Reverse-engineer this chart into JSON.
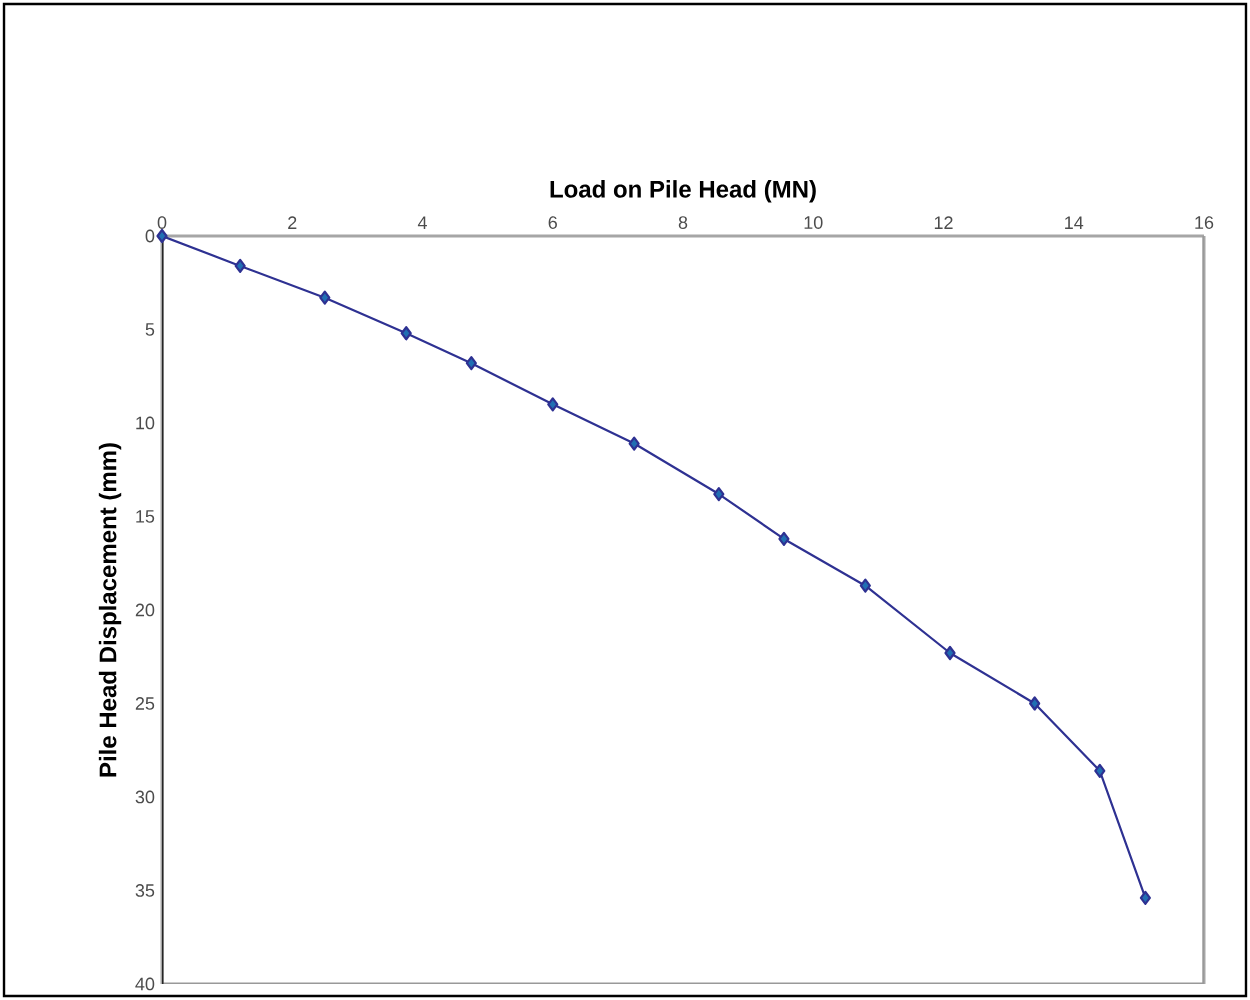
{
  "chart_data": {
    "type": "line",
    "xlabel": "Load on Pile Head (MN)",
    "ylabel": "Pile Head Displacement (mm)",
    "x": [
      0,
      1.2,
      2.5,
      3.75,
      4.75,
      6.0,
      7.25,
      8.55,
      9.55,
      10.8,
      12.1,
      13.4,
      14.4,
      15.1
    ],
    "series": [
      {
        "color": "#2e3192",
        "values": [
          0,
          1.6,
          3.3,
          5.2,
          6.8,
          9.0,
          11.1,
          13.8,
          16.2,
          18.7,
          22.3,
          25.0,
          28.6,
          35.4
        ]
      }
    ],
    "marker": "diamond",
    "line_style": "solid",
    "xlim": [
      0,
      16
    ],
    "xticks": [
      0,
      2,
      4,
      6,
      8,
      10,
      12,
      14,
      16
    ],
    "ylim": [
      40,
      0
    ],
    "yticks": [
      0,
      5,
      10,
      15,
      20,
      25,
      30,
      35,
      40
    ]
  }
}
